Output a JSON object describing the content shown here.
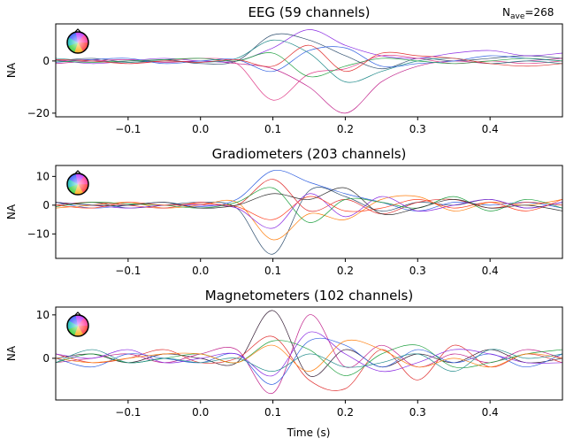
{
  "nave": {
    "label": "N",
    "sub": "ave",
    "value": "=268"
  },
  "xlabel": "Time (s)",
  "xlim": [
    -0.2,
    0.5
  ],
  "xticks": [
    -0.1,
    0.0,
    0.1,
    0.2,
    0.3,
    0.4
  ],
  "xtick_labels": [
    "−0.1",
    "0.0",
    "0.1",
    "0.2",
    "0.3",
    "0.4"
  ],
  "chart_data": [
    {
      "type": "line",
      "title": "EEG (59 channels)",
      "ylabel": "NA",
      "ylim": [
        -21.4,
        14.2
      ],
      "yticks": [
        0,
        -20
      ],
      "ytick_labels": [
        "0",
        "−20"
      ],
      "grid": false,
      "legend": "sensor-location head icon, top-left",
      "x": [
        -0.2,
        -0.15,
        -0.1,
        -0.05,
        0,
        0.05,
        0.1,
        0.15,
        0.2,
        0.25,
        0.3,
        0.35,
        0.4,
        0.45,
        0.5
      ],
      "series": [
        {
          "color": "#2f4f6f",
          "values": [
            0,
            1,
            -0.5,
            0.5,
            -1,
            0,
            10,
            8,
            2,
            -3,
            1,
            0,
            1,
            2,
            1
          ]
        },
        {
          "color": "#c0208a",
          "values": [
            -1,
            0,
            0.5,
            -0.5,
            0,
            -1,
            -3,
            -10,
            -20,
            -8,
            -2,
            0,
            -1,
            0,
            1
          ]
        },
        {
          "color": "#8a2be2",
          "values": [
            0.5,
            -1,
            0,
            1,
            0,
            0,
            5,
            12,
            6,
            2,
            1,
            3,
            4,
            2,
            3
          ]
        },
        {
          "color": "#e0408a",
          "values": [
            0,
            0.5,
            -1,
            0,
            1,
            -1,
            -15,
            -5,
            -3,
            2,
            1,
            -1,
            0,
            -1,
            0
          ]
        },
        {
          "color": "#208a8a",
          "values": [
            1,
            0,
            -0.5,
            0,
            -0.5,
            1,
            8,
            3,
            -8,
            -4,
            0,
            1,
            -1,
            0,
            -1
          ]
        },
        {
          "color": "#3060e0",
          "values": [
            -0.5,
            0.5,
            1,
            -1,
            0,
            0.5,
            -4,
            4,
            5,
            -2,
            -1,
            0,
            2,
            1,
            0
          ]
        },
        {
          "color": "#20a040",
          "values": [
            0,
            -0.5,
            0,
            0.5,
            1,
            0,
            3,
            -6,
            -2,
            1,
            0,
            -1,
            0,
            1,
            0
          ]
        },
        {
          "color": "#e03030",
          "values": [
            0.5,
            0,
            -1,
            0,
            -0.5,
            0.5,
            -2,
            6,
            -4,
            3,
            2,
            1,
            -1,
            -2,
            -1
          ]
        }
      ]
    },
    {
      "type": "line",
      "title": "Gradiometers (203 channels)",
      "ylabel": "NA",
      "ylim": [
        -18.5,
        13.8
      ],
      "yticks": [
        10,
        0,
        -10
      ],
      "ytick_labels": [
        "10",
        "0",
        "−10"
      ],
      "grid": false,
      "legend": "sensor-location head icon, top-left",
      "x": [
        -0.2,
        -0.15,
        -0.1,
        -0.05,
        0,
        0.05,
        0.1,
        0.15,
        0.2,
        0.25,
        0.3,
        0.35,
        0.4,
        0.45,
        0.5
      ],
      "series": [
        {
          "color": "#2f4f6f",
          "values": [
            0,
            1,
            -1,
            0,
            1,
            -1,
            -17,
            5,
            3,
            -2,
            1,
            0,
            2,
            -1,
            1
          ]
        },
        {
          "color": "#3060e0",
          "values": [
            1,
            -1,
            0,
            1,
            -0.5,
            2,
            12,
            8,
            4,
            1,
            -2,
            1,
            0,
            1,
            -1
          ]
        },
        {
          "color": "#ff7f0e",
          "values": [
            -1,
            0,
            1,
            -1,
            0,
            1,
            -12,
            -3,
            -5,
            2,
            3,
            -2,
            1,
            0,
            2
          ]
        },
        {
          "color": "#e03030",
          "values": [
            0,
            1,
            0,
            -1,
            1,
            0,
            9,
            -2,
            2,
            -3,
            1,
            2,
            -1,
            1,
            0
          ]
        },
        {
          "color": "#8a2be2",
          "values": [
            1,
            0,
            -1,
            0,
            0,
            -1,
            -8,
            4,
            -4,
            3,
            -2,
            0,
            2,
            -1,
            1
          ]
        },
        {
          "color": "#20a040",
          "values": [
            -0.5,
            1,
            0.5,
            0,
            -1,
            1,
            6,
            -6,
            2,
            1,
            -1,
            3,
            -2,
            2,
            -1
          ]
        },
        {
          "color": "#ff4020",
          "values": [
            0,
            -1,
            1,
            0,
            0.5,
            -0.5,
            -5,
            3,
            -2,
            -1,
            2,
            -1,
            1,
            -2,
            2
          ]
        },
        {
          "color": "#303030",
          "values": [
            1,
            0,
            0,
            1,
            -1,
            0,
            4,
            2,
            6,
            -3,
            -1,
            2,
            -1,
            0,
            -2
          ]
        }
      ]
    },
    {
      "type": "line",
      "title": "Magnetometers (102 channels)",
      "ylabel": "NA",
      "ylim": [
        -9.6,
        11.8
      ],
      "yticks": [
        10,
        0
      ],
      "ytick_labels": [
        "10",
        "0"
      ],
      "grid": false,
      "legend": "sensor-location head icon, top-left",
      "x": [
        -0.2,
        -0.15,
        -0.1,
        -0.05,
        0,
        0.05,
        0.1,
        0.15,
        0.2,
        0.25,
        0.3,
        0.35,
        0.4,
        0.45,
        0.5
      ],
      "series": [
        {
          "color": "#301830",
          "values": [
            0,
            1,
            -1,
            1,
            0,
            -1,
            11,
            -4,
            2,
            -2,
            1,
            -1,
            2,
            -1,
            0
          ]
        },
        {
          "color": "#c0208a",
          "values": [
            -1,
            0,
            1,
            -1,
            1,
            2,
            -8,
            10,
            -2,
            3,
            -2,
            1,
            -1,
            2,
            0
          ]
        },
        {
          "color": "#e03030",
          "values": [
            1,
            -1,
            0,
            2,
            -1,
            0,
            5,
            -5,
            -7,
            2,
            -5,
            3,
            -2,
            1,
            -1
          ]
        },
        {
          "color": "#3060e0",
          "values": [
            0,
            -2,
            1,
            0,
            -1,
            1,
            -6,
            4,
            3,
            -2,
            2,
            -1,
            1,
            -2,
            1
          ]
        },
        {
          "color": "#20a040",
          "values": [
            -1,
            1,
            -1,
            0,
            1,
            -1,
            4,
            2,
            -4,
            1,
            3,
            -2,
            -1,
            1,
            2
          ]
        },
        {
          "color": "#8a2be2",
          "values": [
            1,
            0,
            2,
            -1,
            0,
            1,
            -4,
            6,
            1,
            -3,
            -1,
            2,
            1,
            -1,
            -1
          ]
        },
        {
          "color": "#ff7f0e",
          "values": [
            0,
            -1,
            0,
            1,
            1,
            -1,
            3,
            -3,
            4,
            2,
            -2,
            0,
            -2,
            1,
            0
          ]
        },
        {
          "color": "#208a8a",
          "values": [
            -1,
            2,
            -1,
            0,
            -1,
            0,
            -3,
            1,
            -2,
            -1,
            1,
            -3,
            2,
            0,
            1
          ]
        }
      ]
    }
  ]
}
